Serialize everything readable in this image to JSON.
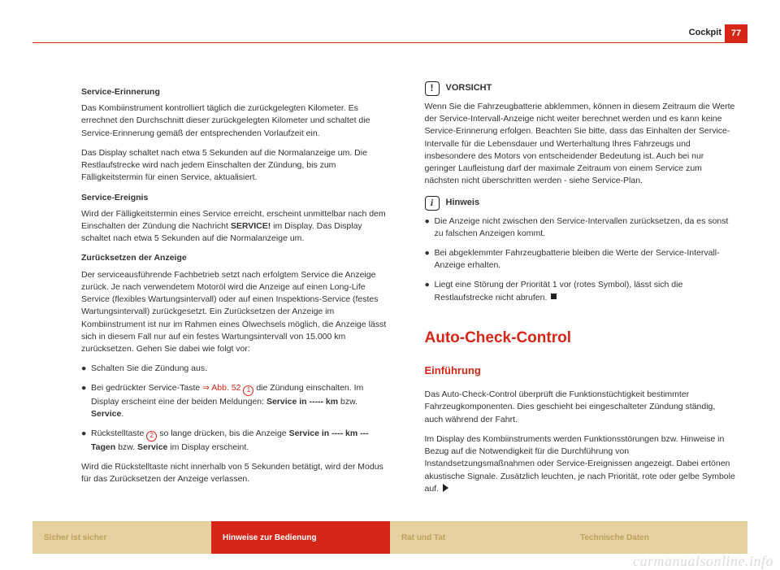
{
  "header": {
    "section": "Cockpit",
    "page_number": "77"
  },
  "colors": {
    "accent": "#d62618",
    "tab_inactive_bg": "#e6d0a0",
    "tab_inactive_fg": "#bba35e",
    "tab_active_bg": "#d62618",
    "tab_active_fg": "#ffffff"
  },
  "left": {
    "h_service_reminder": "Service-Erinnerung",
    "p1": "Das Kombiinstrument kontrolliert täglich die zurückgelegten Kilometer. Es errechnet den Durchschnitt dieser zurückgelegten Kilometer und schaltet die Service-Erinnerung gemäß der entsprechenden Vorlaufzeit ein.",
    "p2": "Das Display schaltet nach etwa 5 Sekunden auf die Normalanzeige um. Die Restlaufstrecke wird nach jedem Einschalten der Zündung, bis zum Fälligkeitstermin für einen Service, aktualisiert.",
    "h_service_event": "Service-Ereignis",
    "p3a": "Wird der Fälligkeitstermin eines Service erreicht, erscheint unmittelbar nach dem Einschalten der Zündung die Nachricht ",
    "p3b": "SERVICE!",
    "p3c": " im Display. Das Display schaltet nach etwa 5 Sekunden auf die Normalanzeige um.",
    "h_reset": "Zurücksetzen der Anzeige",
    "p4": "Der serviceausführende Fachbetrieb setzt nach erfolgtem Service die Anzeige zurück. Je nach verwendetem Motoröl wird die Anzeige auf einen Long-Life Service (flexibles Wartungsintervall) oder auf einen Inspektions-Service (festes Wartungsintervall) zurückgesetzt. Ein Zurücksetzen der Anzeige im Kombiinstrument ist nur im Rahmen eines Ölwechsels möglich, die Anzeige lässt sich in diesem Fall nur auf ein festes Wartungsintervall von 15.000 km zurücksetzen. Gehen Sie dabei wie folgt vor:",
    "b1": "Schalten Sie die Zündung aus.",
    "b2a": "Bei gedrückter Service-Taste ",
    "b2ref": "⇒ Abb. 52",
    "b2num": "1",
    "b2b": " die Zündung einschalten. Im Display erscheint eine der beiden Meldungen: ",
    "b2c": "Service in ----- km",
    "b2d": " bzw. ",
    "b2e": "Service",
    "b2f": ".",
    "b3a": "Rückstelltaste ",
    "b3num": "2",
    "b3b": " so lange drücken, bis die Anzeige ",
    "b3c": "Service in ---- km --- Tagen",
    "b3d": " bzw. ",
    "b3e": "Service",
    "b3f": " im Display erscheint.",
    "p5": "Wird die Rückstelltaste nicht innerhalb von 5 Sekunden betätigt, wird der Modus für das Zurücksetzen der Anzeige verlassen."
  },
  "right": {
    "vorsicht_label": "VORSICHT",
    "vorsicht_icon": "!",
    "vorsicht_text": "Wenn Sie die Fahrzeugbatterie abklemmen, können in diesem Zeitraum die Werte der Service-Intervall-Anzeige nicht weiter berechnet werden und es kann keine Service-Erinnerung erfolgen. Beachten Sie bitte, dass das Einhalten der Service-Intervalle für die Lebensdauer und Werterhaltung Ihres Fahrzeugs und insbesondere des Motors von entscheidender Bedeutung ist. Auch bei nur geringer Laufleistung darf der maximale Zeitraum von einem Service zum nächsten nicht überschritten werden - siehe Service-Plan.",
    "hinweis_label": "Hinweis",
    "hinweis_icon": "i",
    "hb1": "Die Anzeige nicht zwischen den Service-Intervallen zurücksetzen, da es sonst zu falschen Anzeigen kommt.",
    "hb2": "Bei abgeklemmter Fahrzeugbatterie bleiben die Werte der Service-Intervall-Anzeige erhalten.",
    "hb3": "Liegt eine Störung der Priorität 1 vor (rotes Symbol), lässt sich die Restlaufstrecke nicht abrufen.",
    "h1": "Auto-Check-Control",
    "h2": "Einführung",
    "p1": "Das Auto-Check-Control überprüft die Funktionstüchtigkeit bestimmter Fahrzeugkomponenten. Dies geschieht bei eingeschalteter Zündung ständig, auch während der Fahrt.",
    "p2": "Im Display des Kombiinstruments werden Funktionsstörungen bzw. Hinweise in Bezug auf die Notwendigkeit für die Durchführung von Instandsetzungsmaßnahmen oder Service-Ereignissen angezeigt. Dabei ertönen akustische Signale. Zusätzlich leuchten, je nach Priorität, rote oder gelbe Symbole auf."
  },
  "tabs": {
    "t1": "Sicher ist sicher",
    "t2": "Hinweise zur Bedienung",
    "t3": "Rat und Tat",
    "t4": "Technische Daten",
    "active_index": 1
  },
  "watermark": "carmanualsonline.info"
}
